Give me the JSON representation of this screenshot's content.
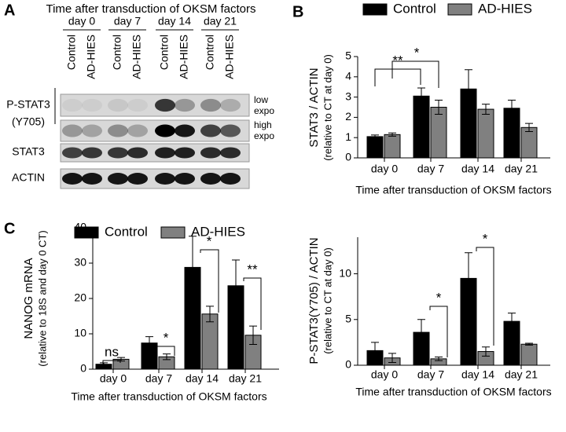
{
  "panels": [
    "A",
    "B",
    "C"
  ],
  "blot": {
    "title": "Time after transduction of OKSM factors",
    "days": [
      "day 0",
      "day 7",
      "day 14",
      "day 21"
    ],
    "lanes": [
      "Control",
      "AD-HIES",
      "Control",
      "AD-HIES",
      "Control",
      "AD-HIES",
      "Control",
      "AD-HIES"
    ],
    "rows": [
      "P-STAT3",
      "(Y705)",
      "STAT3",
      "ACTIN"
    ],
    "exposures": [
      [
        "low",
        "expo"
      ],
      [
        "high",
        "expo"
      ]
    ]
  },
  "chart_data": [
    {
      "type": "bar",
      "xlabel": "Time after transduction of OKSM factors",
      "ylabel": [
        "STAT3 / ACTIN",
        "(relative to CT at day 0)"
      ],
      "categories": [
        "day 0",
        "day 7",
        "day 14",
        "day 21"
      ],
      "series": [
        {
          "name": "Control",
          "color": "#000000",
          "values": [
            1.05,
            3.05,
            3.4,
            2.45
          ],
          "errors": [
            0.08,
            0.4,
            0.95,
            0.4
          ]
        },
        {
          "name": "AD-HIES",
          "color": "#808080",
          "values": [
            1.15,
            2.5,
            2.4,
            1.5
          ],
          "errors": [
            0.08,
            0.35,
            0.25,
            0.2
          ]
        }
      ],
      "ylim": [
        0,
        5
      ],
      "yticks": [
        0,
        1,
        2,
        3,
        4,
        5
      ],
      "annotations": [
        "**",
        "*"
      ]
    },
    {
      "type": "bar",
      "xlabel": "Time after transduction of OKSM factors",
      "ylabel": [
        "P-STAT3(Y705) / ACTIN",
        "(relative to CT at day 0)"
      ],
      "categories": [
        "day 0",
        "day 7",
        "day 14",
        "day 21"
      ],
      "series": [
        {
          "name": "Control",
          "color": "#000000",
          "values": [
            1.6,
            3.6,
            9.5,
            4.8
          ],
          "errors": [
            0.9,
            1.4,
            2.8,
            0.9
          ]
        },
        {
          "name": "AD-HIES",
          "color": "#808080",
          "values": [
            0.8,
            0.7,
            1.5,
            2.3
          ],
          "errors": [
            0.5,
            0.2,
            0.5,
            0.1
          ]
        }
      ],
      "ylim": [
        0,
        14
      ],
      "yticks": [
        0,
        5,
        10
      ],
      "annotations": [
        "*",
        "*"
      ]
    },
    {
      "type": "bar",
      "xlabel": "Time after transduction of OKSM factors",
      "ylabel": [
        "NANOG mRNA",
        "(relative to 18S and day 0 CT)"
      ],
      "categories": [
        "day 0",
        "day 7",
        "day 14",
        "day 21"
      ],
      "series": [
        {
          "name": "Control",
          "color": "#000000",
          "values": [
            1.4,
            7.4,
            28.8,
            23.6
          ],
          "errors": [
            0.4,
            1.8,
            8.8,
            7.3
          ]
        },
        {
          "name": "AD-HIES",
          "color": "#808080",
          "values": [
            2.8,
            3.5,
            15.6,
            9.6
          ],
          "errors": [
            0.5,
            0.8,
            2.2,
            2.6
          ]
        }
      ],
      "ylim": [
        0,
        40
      ],
      "yticks": [
        0,
        10,
        20,
        30,
        40
      ],
      "annotations": [
        "ns",
        "*",
        "*",
        "**"
      ]
    }
  ]
}
